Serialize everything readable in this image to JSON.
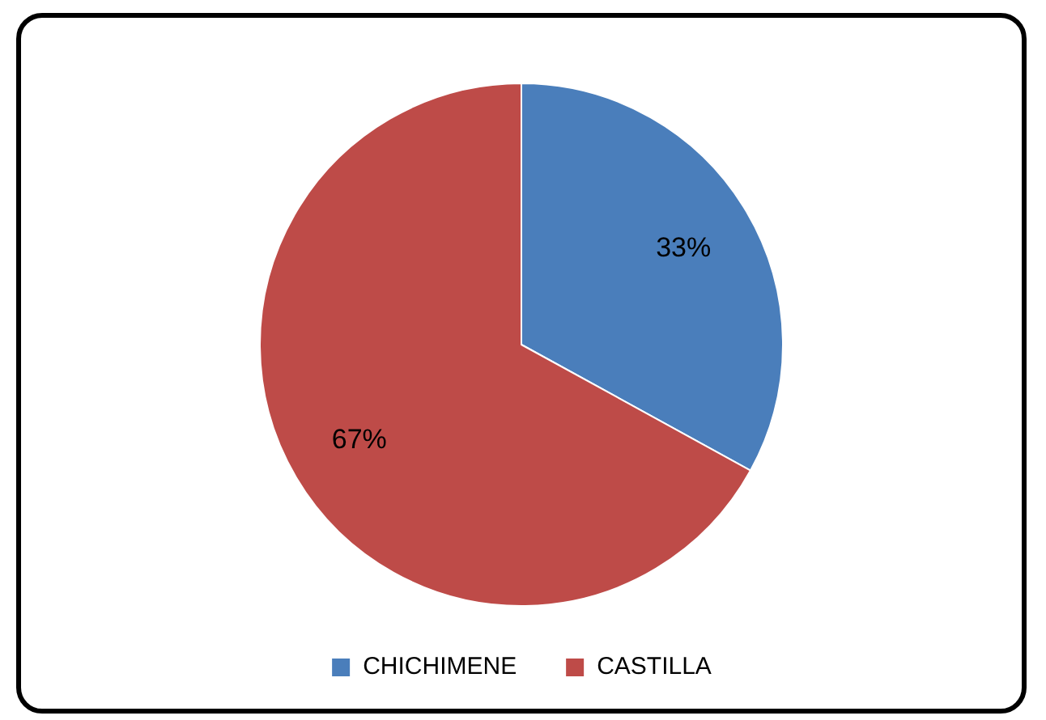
{
  "chart_data": {
    "type": "pie",
    "categories": [
      "CHICHIMENE",
      "CASTILLA"
    ],
    "values": [
      33,
      67
    ],
    "colors": [
      "#4a7ebb",
      "#be4b48"
    ],
    "value_labels": [
      "33%",
      "67%"
    ],
    "legend": "bottom"
  }
}
